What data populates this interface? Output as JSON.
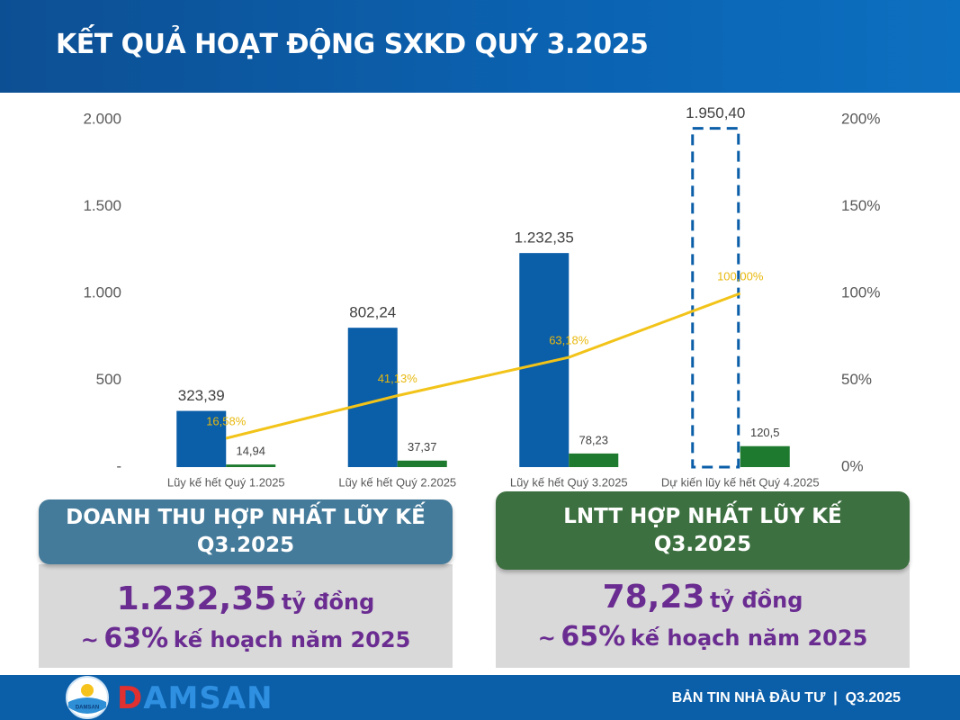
{
  "header": {
    "title": "KẾT QUẢ HOẠT ĐỘNG SXKD QUÝ 3.2025"
  },
  "chart_data": {
    "type": "bar",
    "categories": [
      "Lũy kế hết Quý 1.2025",
      "Lũy kế hết Quý 2.2025",
      "Lũy kế hết Quý 3.2025",
      "Dự kiến lũy kế hết Quý 4.2025"
    ],
    "series": [
      {
        "type": "bar",
        "color": "#0b5ea8",
        "dashed": [
          false,
          false,
          false,
          true
        ],
        "values": [
          323.39,
          802.24,
          1232.35,
          1950.4
        ],
        "value_labels": [
          "323,39",
          "802,24",
          "1.232,35",
          "1.950,40"
        ]
      },
      {
        "type": "bar",
        "color": "#1e7a2e",
        "values": [
          14.94,
          37.37,
          78.23,
          120.5
        ],
        "value_labels": [
          "14,94",
          "37,37",
          "78,23",
          "120,5"
        ]
      },
      {
        "type": "line",
        "axis": "y2",
        "color": "#f2c318",
        "values": [
          16.58,
          41.13,
          63.18,
          100.0
        ],
        "value_labels": [
          "16,58%",
          "41,13%",
          "63,18%",
          "100,00%"
        ]
      }
    ],
    "ylim": [
      0,
      2000
    ],
    "yticks": [
      {
        "value": 0,
        "label": "-"
      },
      500,
      {
        "value": 1000,
        "label": "1.000"
      },
      {
        "value": 1500,
        "label": "1.500"
      },
      {
        "value": 2000,
        "label": "2.000"
      }
    ],
    "y2lim": [
      0,
      200
    ],
    "y2ticks": [
      {
        "value": 0,
        "label": "0%"
      },
      {
        "value": 50,
        "label": "50%"
      },
      {
        "value": 100,
        "label": "100%"
      },
      {
        "value": 150,
        "label": "150%"
      },
      {
        "value": 200,
        "label": "200%"
      }
    ],
    "grid": false
  },
  "cards": [
    {
      "title": [
        "DOANH THU HỢP NHẤT LŨY KẾ",
        "Q3.2025"
      ],
      "value": "1.232,35",
      "unit": "tỷ đồng",
      "approx": "~",
      "percent": "63%",
      "plan": "kế hoạch năm 2025"
    },
    {
      "title": [
        "LNTT HỢP NHẤT LŨY KẾ",
        "Q3.2025"
      ],
      "value": "78,23",
      "unit": "tỷ đồng",
      "approx": "~",
      "percent": "65%",
      "plan": "kế hoạch năm 2025"
    }
  ],
  "footer": {
    "logo": [
      "D",
      "AMSAN"
    ],
    "logo_small": "DAMSAN",
    "bulletin": "BẢN TIN NHÀ ĐẦU TƯ",
    "separator": "|",
    "period": "Q3.2025"
  }
}
